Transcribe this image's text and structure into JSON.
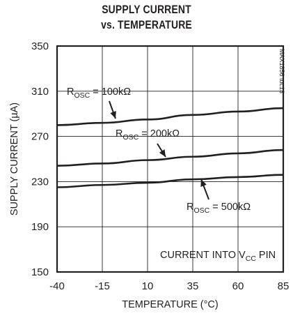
{
  "chart_data": {
    "type": "line",
    "title": [
      "SUPPLY CURRENT",
      "vs. TEMPERATURE"
    ],
    "xlabel": "TEMPERATURE (°C)",
    "ylabel": "SUPPLY CURRENT (µA)",
    "xlim": [
      -40,
      85
    ],
    "ylim": [
      150,
      350
    ],
    "x_ticks": [
      -40,
      -15,
      10,
      35,
      60,
      85
    ],
    "y_ticks": [
      150,
      190,
      230,
      270,
      310,
      350
    ],
    "grid": true,
    "series": [
      {
        "name": "ROSC = 100kΩ",
        "label_main": "R",
        "label_sub": "OSC",
        "label_value": " = 100kΩ",
        "x": [
          -40,
          -15,
          10,
          35,
          60,
          85
        ],
        "values": [
          280,
          282,
          285,
          289,
          292,
          295
        ]
      },
      {
        "name": "ROSC = 200kΩ",
        "label_main": "R",
        "label_sub": "OSC",
        "label_value": " = 200kΩ",
        "x": [
          -40,
          -15,
          10,
          35,
          60,
          85
        ],
        "values": [
          244,
          246,
          249,
          252,
          255,
          258
        ]
      },
      {
        "name": "ROSC = 500kΩ",
        "label_main": "R",
        "label_sub": "OSC",
        "label_value": " = 500kΩ",
        "x": [
          -40,
          -15,
          10,
          35,
          60,
          85
        ],
        "values": [
          225,
          227,
          229,
          232,
          234,
          236
        ]
      }
    ],
    "annotation": {
      "pre": "CURRENT INTO V",
      "sub": "CC",
      "post": " PIN"
    },
    "watermark": "MAX1856 toc13"
  }
}
